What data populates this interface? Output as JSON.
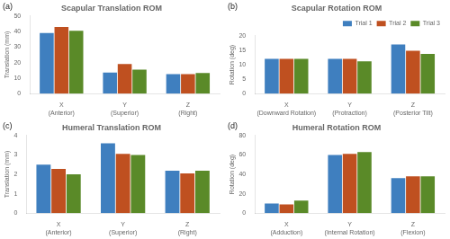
{
  "chart_data": [
    {
      "type": "bar",
      "title": "Scapular Translation ROM",
      "annotations": [
        "(a)"
      ],
      "y_label": "Translation (mm)",
      "categories": [
        "X (Anterior)",
        "Y (Superior)",
        "Z (Right)"
      ],
      "series": [
        {
          "name": "Trial 1",
          "color": "#3F7FBF",
          "values": [
            39,
            13.5,
            12.5
          ]
        },
        {
          "name": "Trial 2",
          "color": "#BF5020",
          "values": [
            43,
            19,
            12.5
          ]
        },
        {
          "name": "Trial 3",
          "color": "#5A8A28",
          "values": [
            40.5,
            15.5,
            13.3
          ]
        }
      ],
      "ylim": [
        0,
        50
      ],
      "yticks": [
        0,
        10,
        20,
        30,
        40,
        50
      ],
      "grid": false
    },
    {
      "type": "bar",
      "title": "Scapular Rotation ROM",
      "annotations": [
        "(b)"
      ],
      "y_label": "Rotation (deg)",
      "categories": [
        "X (Downward Rotation)",
        "Y (Protraction)",
        "Z (Posterior Tilt)"
      ],
      "series": [
        {
          "name": "Trial 1",
          "color": "#3F7FBF",
          "values": [
            12,
            12,
            17
          ]
        },
        {
          "name": "Trial 2",
          "color": "#BF5020",
          "values": [
            12,
            12,
            14.8
          ]
        },
        {
          "name": "Trial 3",
          "color": "#5A8A28",
          "values": [
            12,
            11.2,
            13.7
          ]
        }
      ],
      "ylim": [
        0,
        20
      ],
      "yticks": [
        0,
        5,
        10,
        15,
        20
      ],
      "grid": false,
      "legend": "upper right"
    },
    {
      "type": "bar",
      "title": "Humeral Translation ROM",
      "annotations": [
        "(c)"
      ],
      "y_label": "Translation (mm)",
      "categories": [
        "X (Anterior)",
        "Y (Superior)",
        "Z (Right)"
      ],
      "series": [
        {
          "name": "Trial 1",
          "color": "#3F7FBF",
          "values": [
            2.5,
            3.6,
            2.18
          ]
        },
        {
          "name": "Trial 2",
          "color": "#BF5020",
          "values": [
            2.28,
            3.05,
            2.05
          ]
        },
        {
          "name": "Trial 3",
          "color": "#5A8A28",
          "values": [
            2.0,
            3.0,
            2.18
          ]
        }
      ],
      "ylim": [
        0,
        4
      ],
      "yticks": [
        0,
        1,
        2,
        3,
        4
      ],
      "grid": false
    },
    {
      "type": "bar",
      "title": "Humeral Rotation ROM",
      "annotations": [
        "(d)"
      ],
      "y_label": "Rotation (deg)",
      "categories": [
        "X (Adduction)",
        "Y (Internal Rotation)",
        "Z (Flexion)"
      ],
      "series": [
        {
          "name": "Trial 1",
          "color": "#3F7FBF",
          "values": [
            10,
            60,
            36
          ]
        },
        {
          "name": "Trial 2",
          "color": "#BF5020",
          "values": [
            9,
            61,
            38
          ]
        },
        {
          "name": "Trial 3",
          "color": "#5A8A28",
          "values": [
            13,
            63,
            38
          ]
        }
      ],
      "ylim": [
        0,
        80
      ],
      "yticks": [
        0,
        20,
        40,
        60,
        80
      ],
      "grid": false
    }
  ]
}
